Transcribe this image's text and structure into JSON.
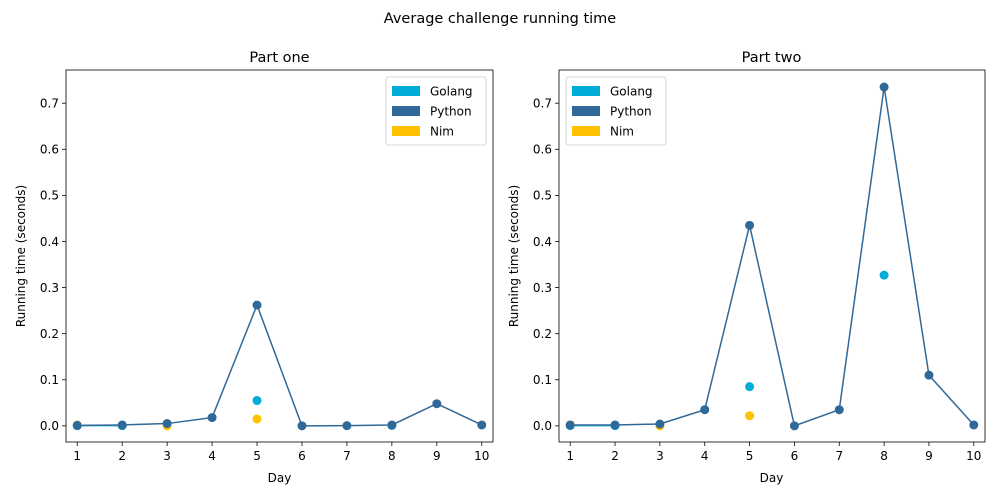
{
  "figure": {
    "title": "Average challenge running time"
  },
  "colors": {
    "Golang": "#00add8",
    "Python": "#306998",
    "Nim": "#ffc200"
  },
  "chart_data": [
    {
      "type": "line",
      "title": "Part one",
      "xlabel": "Day",
      "ylabel": "Running time (seconds)",
      "x": [
        1,
        2,
        3,
        4,
        5,
        6,
        7,
        8,
        9,
        10
      ],
      "xticks": [
        "1",
        "2",
        "3",
        "4",
        "5",
        "6",
        "7",
        "8",
        "9",
        "10"
      ],
      "yticks": [
        "0.0",
        "0.1",
        "0.2",
        "0.3",
        "0.4",
        "0.5",
        "0.6",
        "0.7"
      ],
      "xlim": [
        0.75,
        10.25
      ],
      "ylim": [
        -0.035,
        0.772
      ],
      "grid": false,
      "legend_position": "top-right",
      "series": [
        {
          "name": "Golang",
          "x": [
            1,
            2,
            5,
            8
          ],
          "values": [
            0.0005,
            0.0005,
            0.055,
            0.001
          ],
          "line_days": [
            1,
            2
          ]
        },
        {
          "name": "Python",
          "x": [
            1,
            2,
            3,
            4,
            5,
            6,
            7,
            8,
            9,
            10
          ],
          "values": [
            0.001,
            0.002,
            0.005,
            0.018,
            0.262,
            0.0,
            0.0005,
            0.002,
            0.048,
            0.002
          ],
          "line_days": [
            1,
            2,
            3,
            4,
            5,
            6,
            7,
            8,
            9,
            10
          ]
        },
        {
          "name": "Nim",
          "x": [
            1,
            3,
            5
          ],
          "values": [
            0.002,
            0.0,
            0.015
          ],
          "line_days": []
        }
      ]
    },
    {
      "type": "line",
      "title": "Part two",
      "xlabel": "Day",
      "ylabel": "Running time (seconds)",
      "x": [
        1,
        2,
        3,
        4,
        5,
        6,
        7,
        8,
        9,
        10
      ],
      "xticks": [
        "1",
        "2",
        "3",
        "4",
        "5",
        "6",
        "7",
        "8",
        "9",
        "10"
      ],
      "yticks": [
        "0.0",
        "0.1",
        "0.2",
        "0.3",
        "0.4",
        "0.5",
        "0.6",
        "0.7"
      ],
      "xlim": [
        0.75,
        10.25
      ],
      "ylim": [
        -0.035,
        0.772
      ],
      "grid": false,
      "legend_position": "top-left",
      "series": [
        {
          "name": "Golang",
          "x": [
            1,
            2,
            5,
            8
          ],
          "values": [
            0.0005,
            0.0005,
            0.085,
            0.327
          ],
          "line_days": [
            1,
            2
          ]
        },
        {
          "name": "Python",
          "x": [
            1,
            2,
            3,
            4,
            5,
            6,
            7,
            8,
            9,
            10
          ],
          "values": [
            0.002,
            0.002,
            0.004,
            0.035,
            0.435,
            0.0,
            0.035,
            0.735,
            0.11,
            0.002
          ],
          "line_days": [
            1,
            2,
            3,
            4,
            5,
            6,
            7,
            8,
            9,
            10
          ]
        },
        {
          "name": "Nim",
          "x": [
            1,
            3,
            5
          ],
          "values": [
            0.002,
            0.0,
            0.022
          ],
          "line_days": []
        }
      ]
    }
  ]
}
